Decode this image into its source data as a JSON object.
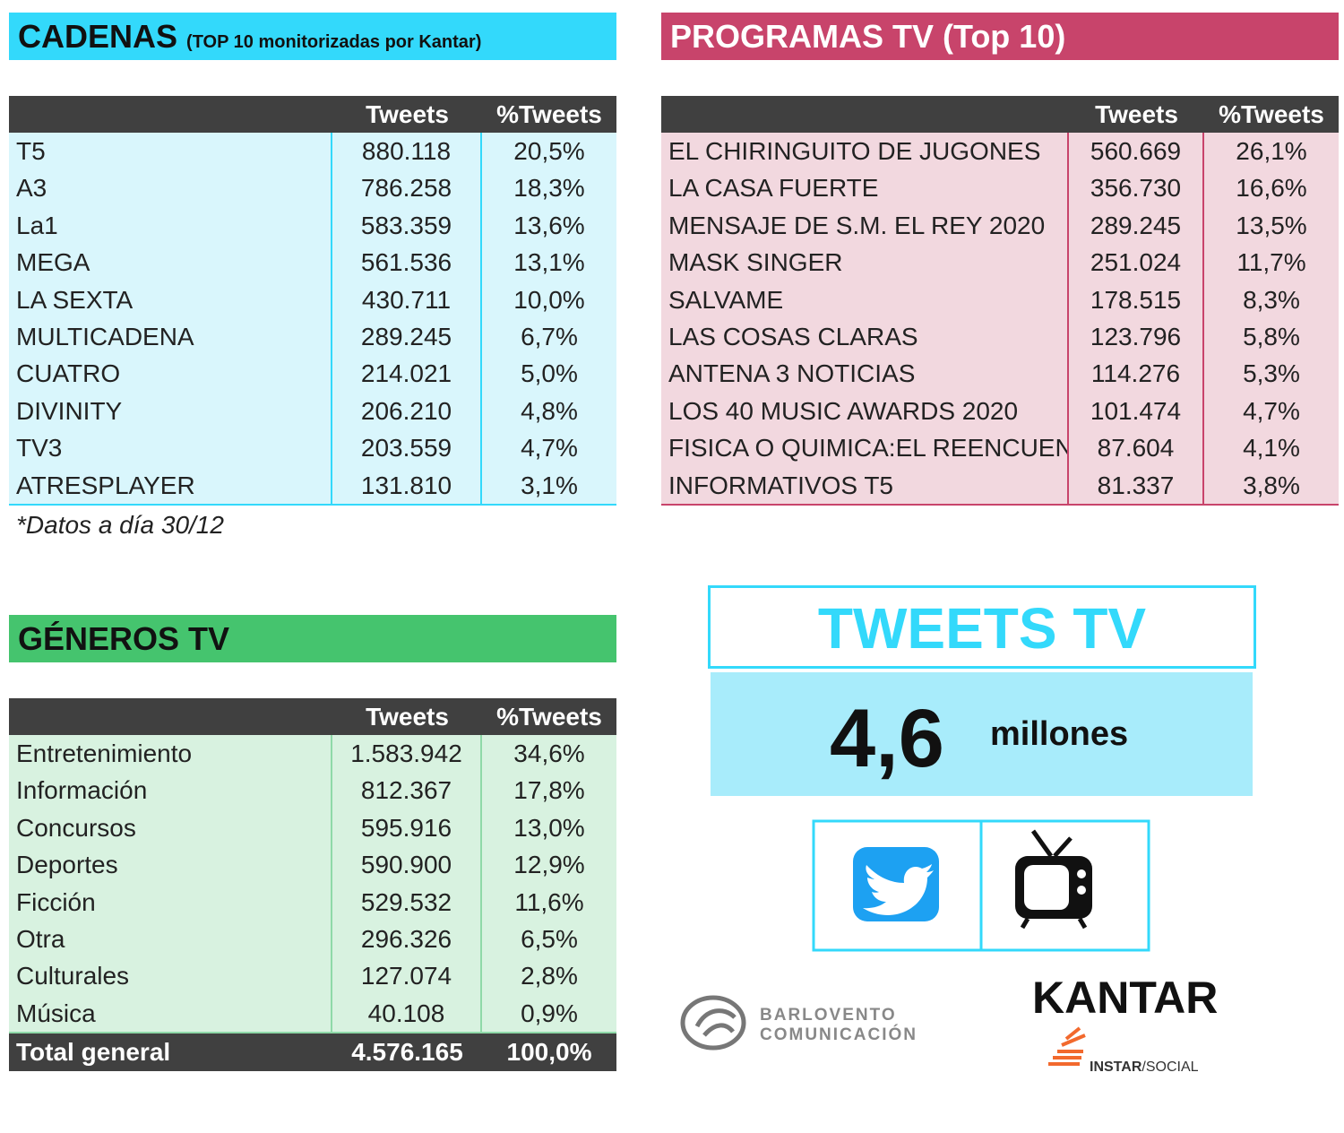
{
  "cadenas": {
    "title": "CADENAS",
    "subtitle": "(TOP 10 monitorizadas por Kantar)",
    "columns": [
      "Tweets",
      "%Tweets"
    ],
    "rows": [
      [
        "T5",
        "880.118",
        "20,5%"
      ],
      [
        "A3",
        "786.258",
        "18,3%"
      ],
      [
        "La1",
        "583.359",
        "13,6%"
      ],
      [
        "MEGA",
        "561.536",
        "13,1%"
      ],
      [
        "LA SEXTA",
        "430.711",
        "10,0%"
      ],
      [
        "MULTICADENA",
        "289.245",
        "6,7%"
      ],
      [
        "CUATRO",
        "214.021",
        "5,0%"
      ],
      [
        "DIVINITY",
        "206.210",
        "4,8%"
      ],
      [
        "TV3",
        "203.559",
        "4,7%"
      ],
      [
        "ATRESPLAYER",
        "131.810",
        "3,1%"
      ]
    ],
    "note": "*Datos a día 30/12"
  },
  "programas": {
    "title": "PROGRAMAS TV (Top 10)",
    "columns": [
      "Tweets",
      "%Tweets"
    ],
    "rows": [
      [
        "EL CHIRINGUITO DE JUGONES",
        "560.669",
        "26,1%"
      ],
      [
        "LA CASA FUERTE",
        "356.730",
        "16,6%"
      ],
      [
        "MENSAJE DE S.M. EL REY 2020",
        "289.245",
        "13,5%"
      ],
      [
        "MASK SINGER",
        "251.024",
        "11,7%"
      ],
      [
        "SALVAME",
        "178.515",
        "8,3%"
      ],
      [
        "LAS COSAS CLARAS",
        "123.796",
        "5,8%"
      ],
      [
        "ANTENA 3 NOTICIAS",
        "114.276",
        "5,3%"
      ],
      [
        "LOS 40 MUSIC AWARDS 2020",
        "101.474",
        "4,7%"
      ],
      [
        "FISICA O QUIMICA:EL REENCUEN",
        "87.604",
        "4,1%"
      ],
      [
        "INFORMATIVOS T5",
        "81.337",
        "3,8%"
      ]
    ]
  },
  "generos": {
    "title": "GÉNEROS TV",
    "columns": [
      "Tweets",
      "%Tweets"
    ],
    "rows": [
      [
        "Entretenimiento",
        "1.583.942",
        "34,6%"
      ],
      [
        "Información",
        "812.367",
        "17,8%"
      ],
      [
        "Concursos",
        "595.916",
        "13,0%"
      ],
      [
        "Deportes",
        "590.900",
        "12,9%"
      ],
      [
        "Ficción",
        "529.532",
        "11,6%"
      ],
      [
        "Otra",
        "296.326",
        "6,5%"
      ],
      [
        "Culturales",
        "127.074",
        "2,8%"
      ],
      [
        "Música",
        "40.108",
        "0,9%"
      ]
    ],
    "total": [
      "Total general",
      "4.576.165",
      "100,0%"
    ]
  },
  "tweets_tv": {
    "title": "TWEETS TV",
    "value": "4,6",
    "unit": "millones"
  },
  "logos": {
    "barlovento": [
      "BARLOVENTO",
      "COMUNICACIÓN"
    ],
    "kantar": "KANTAR",
    "instar": "INSTAR",
    "social": "/SOCIAL"
  }
}
